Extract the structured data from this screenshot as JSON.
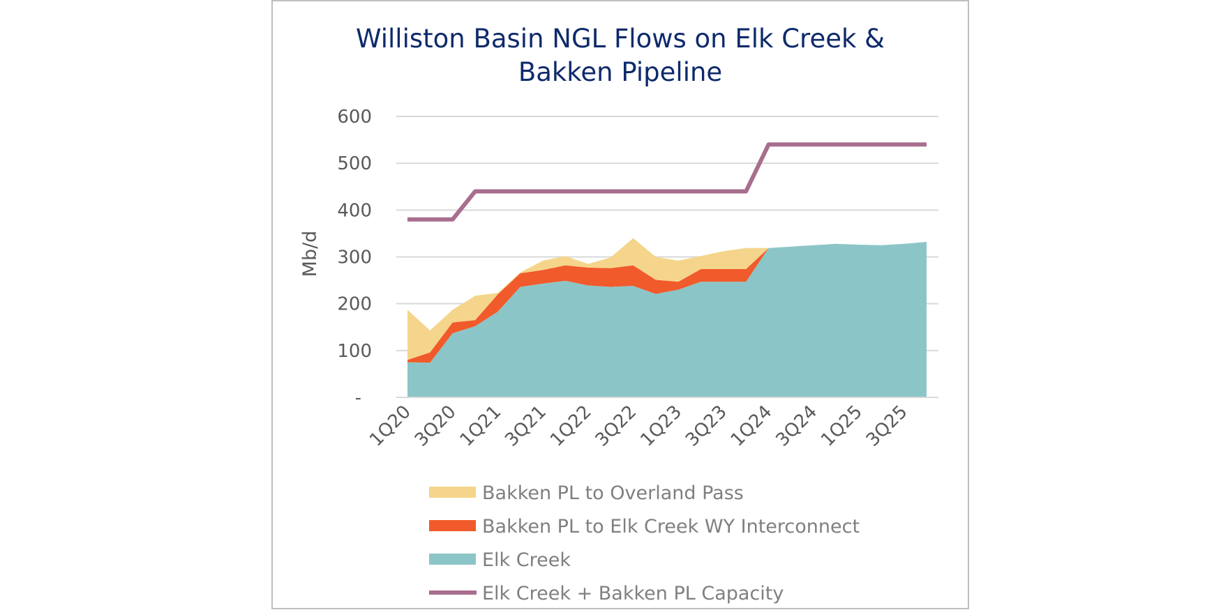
{
  "chart_data": {
    "type": "area",
    "title_lines": [
      "Williston Basin NGL Flows on Elk Creek &",
      "Bakken Pipeline"
    ],
    "ylabel": "Mb/d",
    "xlabel": "",
    "ylim": [
      0,
      600
    ],
    "yticks": [
      {
        "value": 0,
        "label": "-"
      },
      {
        "value": 100,
        "label": "100"
      },
      {
        "value": 200,
        "label": "200"
      },
      {
        "value": 300,
        "label": "300"
      },
      {
        "value": 400,
        "label": "400"
      },
      {
        "value": 500,
        "label": "500"
      },
      {
        "value": 600,
        "label": "600"
      }
    ],
    "grid": true,
    "x": [
      "1Q20",
      "2Q20",
      "3Q20",
      "4Q20",
      "1Q21",
      "2Q21",
      "3Q21",
      "4Q21",
      "1Q22",
      "2Q22",
      "3Q22",
      "4Q22",
      "1Q23",
      "2Q23",
      "3Q23",
      "4Q23",
      "1Q24",
      "2Q24",
      "3Q24",
      "4Q24",
      "1Q25",
      "2Q25",
      "3Q25",
      "4Q25"
    ],
    "x_tick_labels": [
      "1Q20",
      "3Q20",
      "1Q21",
      "3Q21",
      "1Q22",
      "3Q22",
      "1Q23",
      "3Q23",
      "1Q24",
      "3Q24",
      "1Q25",
      "3Q25"
    ],
    "stacked": true,
    "series": [
      {
        "name": "Elk Creek",
        "type": "area",
        "color": "#8cc5c7",
        "values": [
          75,
          74,
          137,
          152,
          183,
          236,
          243,
          249,
          239,
          236,
          238,
          221,
          230,
          247,
          247,
          247,
          319,
          322,
          325,
          328,
          326,
          325,
          328,
          332
        ]
      },
      {
        "name": "Bakken PL to Elk Creek WY Interconnect",
        "type": "area",
        "color": "#f15a2b",
        "values": [
          5,
          22,
          23,
          13,
          37,
          29,
          29,
          33,
          38,
          40,
          44,
          30,
          17,
          27,
          27,
          27,
          0,
          0,
          0,
          0,
          0,
          0,
          0,
          0
        ]
      },
      {
        "name": "Bakken PL to Overland Pass",
        "type": "area",
        "color": "#f5d58b",
        "values": [
          107,
          47,
          27,
          52,
          3,
          2,
          20,
          20,
          8,
          23,
          58,
          49,
          45,
          28,
          38,
          45,
          0,
          0,
          0,
          0,
          0,
          0,
          0,
          0
        ]
      },
      {
        "name": "Elk Creek + Bakken PL Capacity",
        "type": "line",
        "color": "#a86e8e",
        "values": [
          380,
          380,
          380,
          440,
          440,
          440,
          440,
          440,
          440,
          440,
          440,
          440,
          440,
          440,
          440,
          440,
          540,
          540,
          540,
          540,
          540,
          540,
          540,
          540
        ]
      }
    ],
    "legend": {
      "placement": "bottom",
      "order": [
        "Bakken PL to Overland Pass",
        "Bakken PL to Elk Creek WY Interconnect",
        "Elk Creek",
        "Elk Creek + Bakken PL Capacity"
      ]
    },
    "colors": {
      "title": "#0e2a6b",
      "grid": "#d9d9d9",
      "frame": "#bfbfbf"
    }
  }
}
